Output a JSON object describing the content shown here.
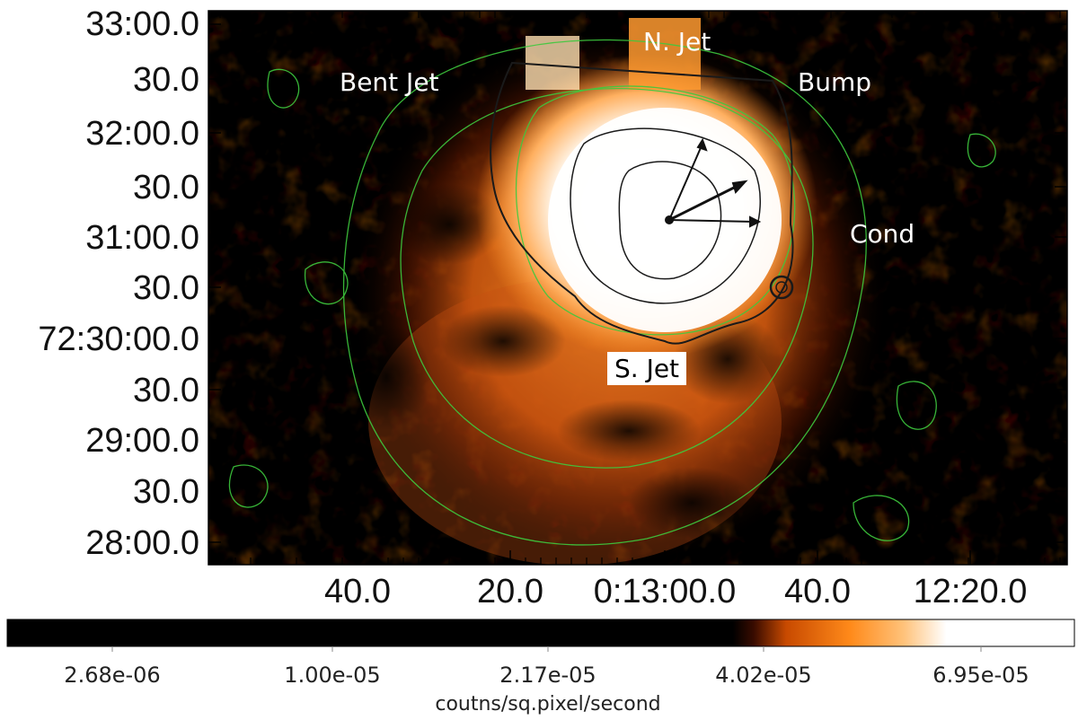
{
  "image": {
    "colormap": [
      "#000000",
      "#3a0c00",
      "#c84a00",
      "#ff8a1a",
      "#ffc27a",
      "#ffffff"
    ],
    "contour_colors": {
      "outer": "#3ec93e",
      "inner": "#1a1a1a"
    }
  },
  "axes": {
    "dec_ticks": [
      "33:00.0",
      "30.0",
      "32:00.0",
      "30.0",
      "31:00.0",
      "30.0",
      "72:30:00.0",
      "30.0",
      "29:00.0",
      "30.0",
      "28:00.0"
    ],
    "ra_ticks": [
      "40.0",
      "20.0",
      "0:13:00.0",
      "40.0",
      "12:20.0"
    ]
  },
  "annotations": {
    "n_jet": "N. Jet",
    "bent_jet": "Bent Jet",
    "bump": "Bump",
    "cond": "Cond",
    "s_jet": "S. Jet"
  },
  "colorbar": {
    "ticks": [
      "2.68e-06",
      "1.00e-05",
      "2.17e-05",
      "4.02e-05",
      "6.95e-05"
    ],
    "units": "coutns/sq.pixel/second"
  }
}
